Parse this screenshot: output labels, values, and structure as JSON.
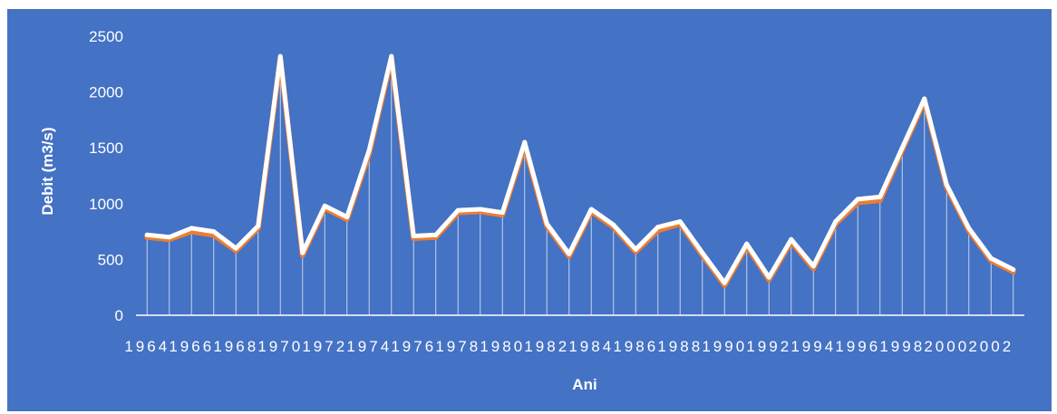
{
  "chart_data": {
    "type": "line",
    "xlabel": "Ani",
    "ylabel": "Debit (m3/s)",
    "ylim": [
      0,
      2500
    ],
    "yticks": [
      0,
      500,
      1000,
      1500,
      2000,
      2500
    ],
    "x": [
      1964,
      1965,
      1966,
      1967,
      1968,
      1969,
      1970,
      1971,
      1972,
      1973,
      1974,
      1975,
      1976,
      1977,
      1978,
      1979,
      1980,
      1981,
      1982,
      1983,
      1984,
      1985,
      1986,
      1987,
      1988,
      1989,
      1990,
      1991,
      1992,
      1993,
      1994,
      1995,
      1996,
      1997,
      1998,
      1999,
      2000,
      2001,
      2002,
      2003
    ],
    "xtick_labels": [
      "1964",
      "1966",
      "1968",
      "1970",
      "1972",
      "1974",
      "1976",
      "1978",
      "1980",
      "1982",
      "1984",
      "1986",
      "1988",
      "1990",
      "1992",
      "1994",
      "1996",
      "1998",
      "2000",
      "2002"
    ],
    "grid": false,
    "legend": "none",
    "series": [
      {
        "color": "#ed7d31",
        "values": [
          700,
          680,
          750,
          720,
          580,
          780,
          2300,
          540,
          960,
          860,
          1450,
          2300,
          690,
          700,
          920,
          930,
          900,
          1520,
          800,
          530,
          930,
          790,
          570,
          760,
          820,
          540,
          270,
          620,
          320,
          660,
          420,
          820,
          1010,
          1030,
          1480,
          1920,
          1150,
          760,
          490,
          390
        ]
      },
      {
        "color": "#ffffff",
        "values": [
          720,
          700,
          780,
          750,
          600,
          800,
          2320,
          560,
          980,
          880,
          1480,
          2320,
          710,
          720,
          940,
          950,
          920,
          1550,
          820,
          550,
          950,
          810,
          590,
          790,
          840,
          560,
          290,
          640,
          340,
          680,
          440,
          840,
          1040,
          1060,
          1500,
          1940,
          1170,
          780,
          510,
          410
        ]
      }
    ],
    "colors": {
      "background": "#4472c4",
      "axis": "#ffffff",
      "droplines": "#dce6f5"
    }
  }
}
